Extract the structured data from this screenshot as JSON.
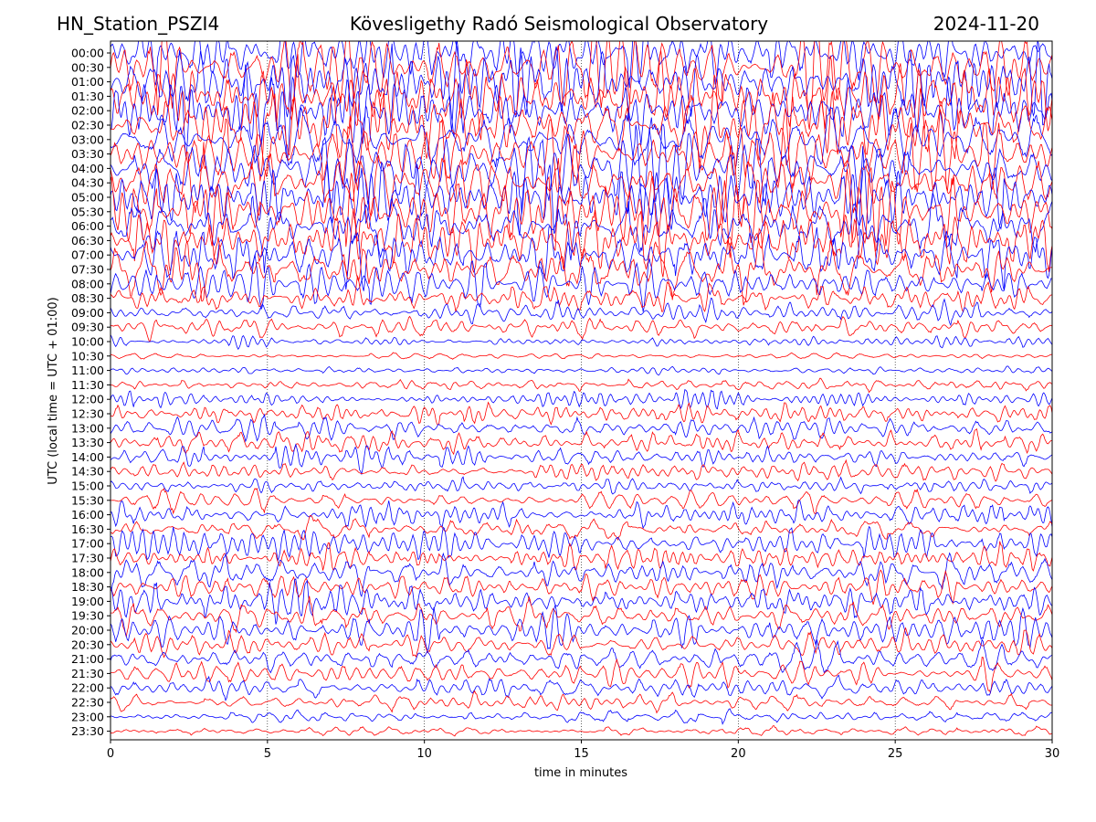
{
  "header": {
    "station": "HN_Station_PSZI4",
    "observatory": "Kövesligethy Radó Seismological Observatory",
    "date": "2024-11-20"
  },
  "chart_data": {
    "type": "line",
    "title": "Kövesligethy Radó Seismological Observatory",
    "xlabel": "time in minutes",
    "ylabel": "UTC (local time = UTC + 01:00)",
    "xlim": [
      0,
      30
    ],
    "x_ticks": [
      0,
      5,
      10,
      15,
      20,
      25,
      30
    ],
    "grid": "vertical dotted",
    "y_tick_labels": [
      "00:00",
      "00:30",
      "01:00",
      "01:30",
      "02:00",
      "02:30",
      "03:00",
      "03:30",
      "04:00",
      "04:30",
      "05:00",
      "05:30",
      "06:00",
      "06:30",
      "07:00",
      "07:30",
      "08:00",
      "08:30",
      "09:00",
      "09:30",
      "10:00",
      "10:30",
      "11:00",
      "11:30",
      "12:00",
      "12:30",
      "13:00",
      "13:30",
      "14:00",
      "14:30",
      "15:00",
      "15:30",
      "16:00",
      "16:30",
      "17:00",
      "17:30",
      "18:00",
      "18:30",
      "19:00",
      "19:30",
      "20:00",
      "20:30",
      "21:00",
      "21:30",
      "22:00",
      "22:30",
      "23:00",
      "23:30"
    ],
    "trace_colors": [
      "#0000ff",
      "#ff0000"
    ],
    "relative_amplitude": [
      1.0,
      1.0,
      1.0,
      1.0,
      1.0,
      1.0,
      1.0,
      1.0,
      1.0,
      1.0,
      1.0,
      1.0,
      0.95,
      0.9,
      0.85,
      0.75,
      0.55,
      0.4,
      0.3,
      0.25,
      0.15,
      0.1,
      0.1,
      0.15,
      0.2,
      0.25,
      0.3,
      0.3,
      0.3,
      0.3,
      0.3,
      0.3,
      0.35,
      0.35,
      0.4,
      0.4,
      0.45,
      0.45,
      0.45,
      0.45,
      0.45,
      0.45,
      0.4,
      0.4,
      0.3,
      0.25,
      0.2,
      0.15
    ]
  }
}
